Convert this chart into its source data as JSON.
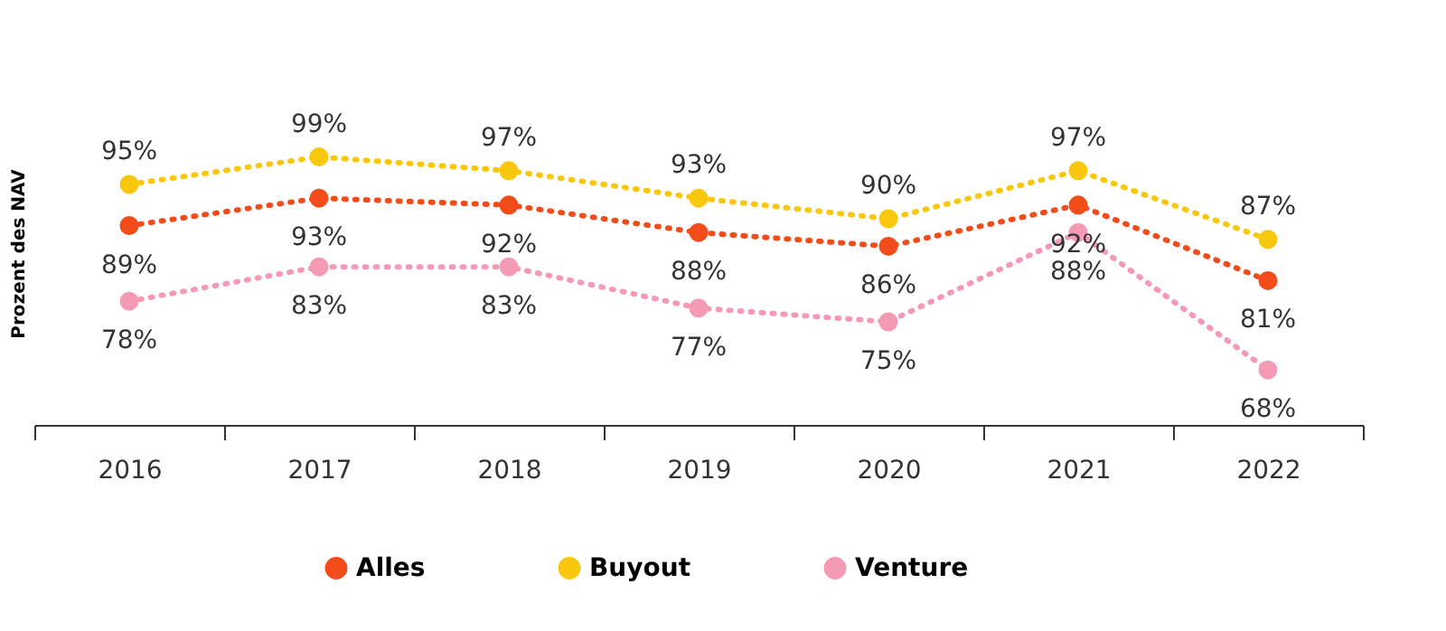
{
  "chart_data": {
    "type": "line",
    "ylabel": "Prozent des NAV",
    "categories": [
      "2016",
      "2017",
      "2018",
      "2019",
      "2020",
      "2021",
      "2022"
    ],
    "series": [
      {
        "name": "Alles",
        "color": "#f24c1a",
        "values": [
          89,
          93,
          92,
          88,
          86,
          92,
          81
        ],
        "value_labels": [
          "89%",
          "93%",
          "92%",
          "88%",
          "86%",
          "92%",
          "81%"
        ]
      },
      {
        "name": "Buyout",
        "color": "#f9c80e",
        "values": [
          95,
          99,
          97,
          93,
          90,
          97,
          87
        ],
        "value_labels": [
          "95%",
          "99%",
          "97%",
          "93%",
          "90%",
          "97%",
          "87%"
        ]
      },
      {
        "name": "Venture",
        "color": "#f59ab5",
        "values": [
          78,
          83,
          83,
          77,
          75,
          88,
          68
        ],
        "value_labels": [
          "78%",
          "83%",
          "83%",
          "77%",
          "75%",
          "88%",
          "68%"
        ]
      }
    ],
    "tick_labels": "x",
    "grid": false,
    "legend": "bottom",
    "marker": "circle",
    "line_style": "dotted"
  }
}
